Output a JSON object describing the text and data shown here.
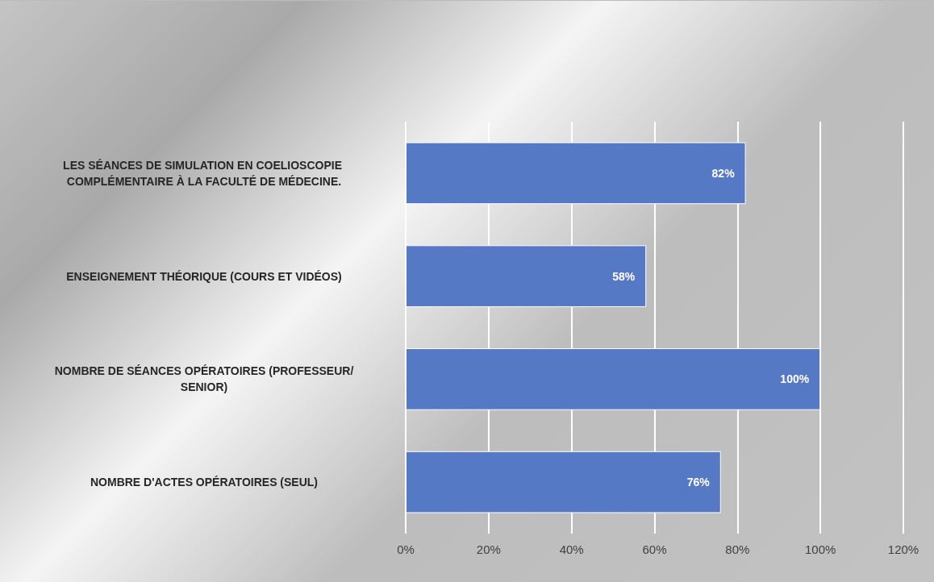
{
  "chart_data": {
    "type": "bar",
    "orientation": "horizontal",
    "categories": [
      "LES SÉANCES DE SIMULATION EN COELIOSCOPIE COMPLÉMENTAIRE À LA FACULTÉ DE MÉDECINE.",
      "ENSEIGNEMENT THÉORIQUE (COURS ET VIDÉOS)",
      "NOMBRE DE SÉANCES OPÉRATOIRES (PROFESSEUR/SENIOR)",
      "NOMBRE D'ACTES OPÉRATOIRES (SEUL)"
    ],
    "values": [
      82,
      58,
      100,
      76
    ],
    "value_labels": [
      "82%",
      "58%",
      "100%",
      "76%"
    ],
    "color": "#5579c4",
    "xlim": [
      0,
      120
    ],
    "xticks": [
      {
        "value": 0,
        "label": "0%"
      },
      {
        "value": 20,
        "label": "20%"
      },
      {
        "value": 40,
        "label": "40%"
      },
      {
        "value": 60,
        "label": "60%"
      },
      {
        "value": 80,
        "label": "80%"
      },
      {
        "value": 100,
        "label": "100%"
      },
      {
        "value": 120,
        "label": "120%"
      }
    ],
    "grid": "x"
  }
}
